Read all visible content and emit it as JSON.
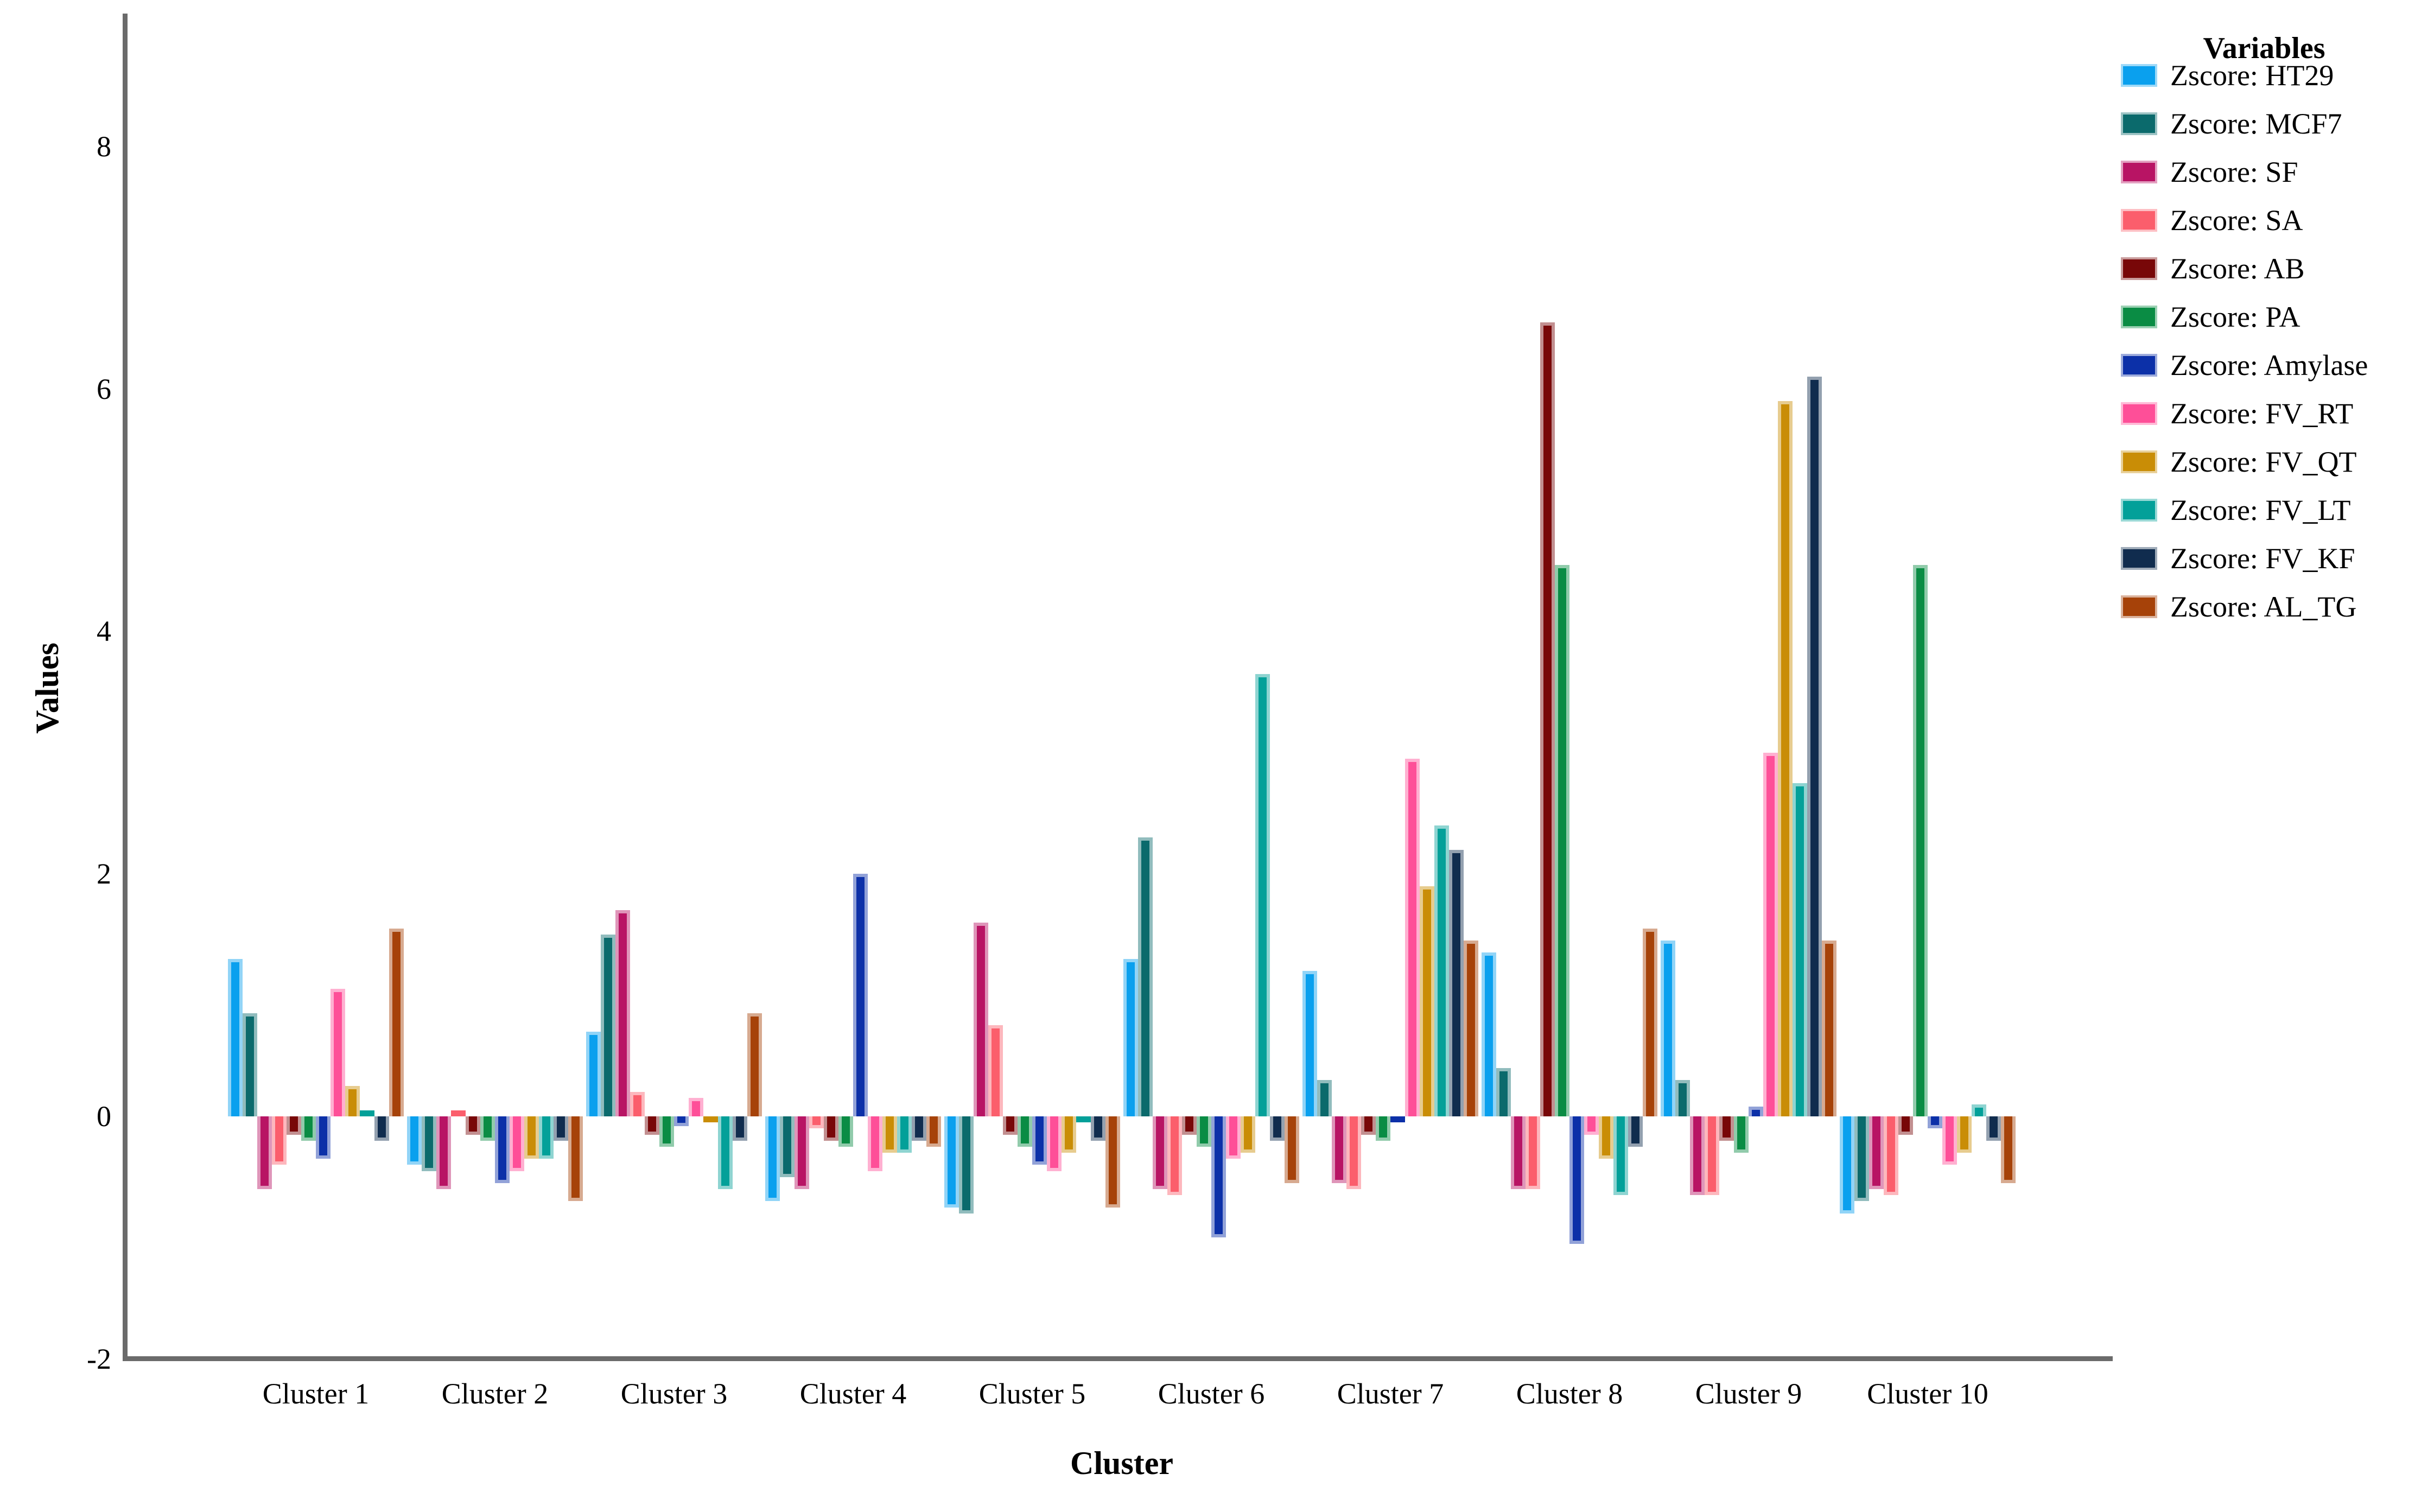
{
  "chart_data": {
    "type": "bar",
    "title": "",
    "xlabel": "Cluster",
    "ylabel": "Values",
    "legend_title": "Variables",
    "legend_position": "right",
    "grid": false,
    "ylim": [
      -2,
      9.1
    ],
    "y_ticks": [
      8,
      6,
      4,
      2,
      0,
      -2
    ],
    "categories": [
      "Cluster 1",
      "Cluster 2",
      "Cluster 3",
      "Cluster 4",
      "Cluster 5",
      "Cluster 6",
      "Cluster 7",
      "Cluster 8",
      "Cluster 9",
      "Cluster 10"
    ],
    "series": [
      {
        "name": "Zscore:  HT29",
        "color": "#0aa0ee",
        "values": [
          1.3,
          -0.4,
          0.7,
          -0.7,
          -0.75,
          1.3,
          1.2,
          1.35,
          1.45,
          -0.8
        ]
      },
      {
        "name": "Zscore:  MCF7",
        "color": "#0b6a6c",
        "values": [
          0.85,
          -0.45,
          1.5,
          -0.5,
          -0.8,
          2.3,
          0.3,
          0.4,
          0.3,
          -0.7
        ]
      },
      {
        "name": "Zscore:  SF",
        "color": "#b81464",
        "values": [
          -0.6,
          -0.6,
          1.7,
          -0.6,
          1.6,
          -0.6,
          -0.55,
          -0.6,
          -0.65,
          -0.6
        ]
      },
      {
        "name": "Zscore:  SA",
        "color": "#fb5e6c",
        "values": [
          -0.4,
          0.05,
          0.2,
          -0.1,
          0.75,
          -0.65,
          -0.6,
          -0.6,
          -0.65,
          -0.65
        ]
      },
      {
        "name": "Zscore:  AB",
        "color": "#780708",
        "values": [
          -0.15,
          -0.15,
          -0.15,
          -0.2,
          -0.15,
          -0.15,
          -0.15,
          6.55,
          -0.2,
          -0.15
        ]
      },
      {
        "name": "Zscore:  PA",
        "color": "#0a8c44",
        "values": [
          -0.2,
          -0.2,
          -0.25,
          -0.25,
          -0.25,
          -0.25,
          -0.2,
          4.55,
          -0.3,
          4.55
        ]
      },
      {
        "name": "Zscore:  Amylase",
        "color": "#0c30a8",
        "values": [
          -0.35,
          -0.55,
          -0.08,
          2.0,
          -0.4,
          -1.0,
          -0.05,
          -1.05,
          0.08,
          -0.1
        ]
      },
      {
        "name": "Zscore:  FV_RT",
        "color": "#fe4f98",
        "values": [
          1.05,
          -0.45,
          0.15,
          -0.45,
          -0.45,
          -0.35,
          2.95,
          -0.15,
          3.0,
          -0.4
        ]
      },
      {
        "name": "Zscore:  FV_QT",
        "color": "#c98d06",
        "values": [
          0.25,
          -0.35,
          -0.05,
          -0.3,
          -0.3,
          -0.3,
          1.9,
          -0.35,
          5.9,
          -0.3
        ]
      },
      {
        "name": "Zscore:  FV_LT",
        "color": "#03a099",
        "values": [
          0.05,
          -0.35,
          -0.6,
          -0.3,
          -0.05,
          3.65,
          2.4,
          -0.65,
          2.75,
          0.1
        ]
      },
      {
        "name": "Zscore:  FV_KF",
        "color": "#102c4e",
        "values": [
          -0.2,
          -0.2,
          -0.2,
          -0.2,
          -0.2,
          -0.2,
          2.2,
          -0.25,
          6.1,
          -0.2
        ]
      },
      {
        "name": "Zscore:  AL_TG",
        "color": "#a64209",
        "values": [
          1.55,
          -0.7,
          0.85,
          -0.25,
          -0.75,
          -0.55,
          1.45,
          1.55,
          1.45,
          -0.55
        ]
      }
    ]
  },
  "layout_colors": {
    "axis_line": "#6b6b6b",
    "background": "#ffffff",
    "text": "#000000"
  }
}
